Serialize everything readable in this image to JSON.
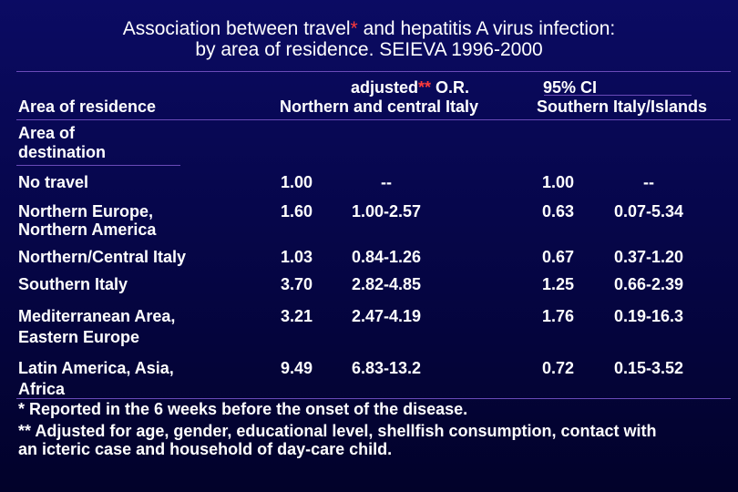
{
  "title": {
    "line1_a": "Association between travel",
    "line1_star": "*",
    "line1_b": " and hepatitis A virus infection:",
    "line2": "by area of residence. SEIEVA 1996-2000"
  },
  "header": {
    "area_of_residence": "Area of residence",
    "adjusted_a": "adjusted",
    "adjusted_stars": "**",
    "adjusted_b": " O.R.",
    "ci": "95% CI",
    "northern": "Northern and central Italy",
    "southern": "Southern Italy/Islands",
    "area_of_destination_1": "Area of",
    "area_of_destination_2": "destination"
  },
  "rows": [
    {
      "label1": "No travel",
      "label2": "",
      "n_or": "1.00",
      "n_ci": "--",
      "s_or": "1.00",
      "s_ci": "--"
    },
    {
      "label1": "Northern Europe,",
      "label2": "Northern America",
      "n_or": "1.60",
      "n_ci": "1.00-2.57",
      "s_or": "0.63",
      "s_ci": "0.07-5.34"
    },
    {
      "label1": "Northern/Central Italy",
      "label2": "",
      "n_or": "1.03",
      "n_ci": "0.84-1.26",
      "s_or": "0.67",
      "s_ci": "0.37-1.20"
    },
    {
      "label1": "Southern Italy",
      "label2": "",
      "n_or": "3.70",
      "n_ci": "2.82-4.85",
      "s_or": "1.25",
      "s_ci": "0.66-2.39"
    },
    {
      "label1": "Mediterranean Area,",
      "label2": "Eastern Europe",
      "n_or": "3.21",
      "n_ci": "2.47-4.19",
      "s_or": "1.76",
      "s_ci": "0.19-16.3"
    },
    {
      "label1": "Latin America, Asia,",
      "label2": "Africa",
      "n_or": "9.49",
      "n_ci": "6.83-13.2",
      "s_or": "0.72",
      "s_ci": "0.15-3.52"
    }
  ],
  "footnotes": {
    "f1": "* Reported in the 6 weeks before the onset of the disease.",
    "f2_line1": "** Adjusted for age, gender, educational level, shellfish consumption, contact with",
    "f2_line2": "an icteric case and household of day-care child."
  },
  "colors": {
    "background_top": "#0b0b63",
    "background_bottom": "#02022a",
    "text": "#ffffff",
    "highlight": "#ff3b3b",
    "rule": "#6a4ab8"
  }
}
